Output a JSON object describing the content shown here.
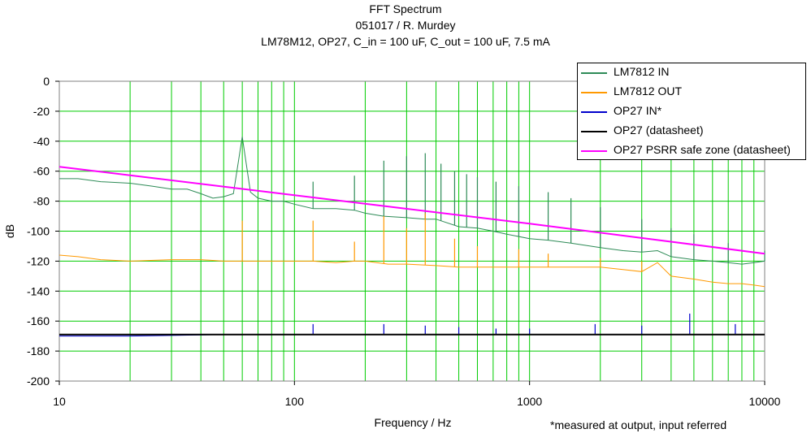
{
  "chart_data": {
    "type": "line",
    "title": "FFT Spectrum",
    "subtitle": "051017 / R. Murdey",
    "subtitle2": "LM78M12, OP27, C_in = 100 uF, C_out = 100 uF, 7.5 mA",
    "xlabel": "Frequency / Hz",
    "ylabel": "dB",
    "x_scale": "log",
    "xlim": [
      10,
      10000
    ],
    "ylim": [
      -200,
      0
    ],
    "x_ticks": [
      "10",
      "100",
      "1000",
      "10000"
    ],
    "y_ticks": [
      "0",
      "-20",
      "-40",
      "-60",
      "-80",
      "-100",
      "-120",
      "-140",
      "-160",
      "-180",
      "-200"
    ],
    "grid": true,
    "grid_color": "#00cc00",
    "legend_position": "top-right",
    "footnote": "*measured at output, input referred",
    "series": [
      {
        "name": "LM7812 IN",
        "color": "#2e8b57",
        "x": [
          10,
          12,
          15,
          20,
          25,
          30,
          35,
          40,
          45,
          50,
          55,
          60,
          65,
          70,
          80,
          90,
          100,
          120,
          150,
          180,
          200,
          240,
          300,
          360,
          400,
          500,
          600,
          700,
          800,
          1000,
          1200,
          1500,
          2000,
          2500,
          3000,
          3500,
          4000,
          5000,
          6000,
          7000,
          8000,
          9000,
          10000
        ],
        "y": [
          -65,
          -65,
          -67,
          -68,
          -70,
          -72,
          -72,
          -75,
          -78,
          -77,
          -75,
          -37,
          -74,
          -78,
          -80,
          -80,
          -82,
          -85,
          -85,
          -86,
          -88,
          -90,
          -91,
          -92,
          -92,
          -97,
          -98,
          -100,
          -102,
          -105,
          -106,
          -108,
          -111,
          -113,
          -114,
          -113,
          -117,
          -119,
          -120,
          -121,
          -122,
          -121,
          -120
        ],
        "peaks": [
          [
            60,
            -37
          ],
          [
            120,
            -67
          ],
          [
            180,
            -63
          ],
          [
            240,
            -53
          ],
          [
            300,
            -50
          ],
          [
            360,
            -48
          ],
          [
            420,
            -55
          ],
          [
            480,
            -60
          ],
          [
            540,
            -62
          ],
          [
            600,
            -64
          ],
          [
            720,
            -67
          ],
          [
            900,
            -70
          ],
          [
            1200,
            -74
          ],
          [
            1500,
            -78
          ],
          [
            2000,
            -84
          ],
          [
            3000,
            -92
          ],
          [
            4000,
            -98
          ],
          [
            5000,
            -102
          ],
          [
            7000,
            -108
          ],
          [
            10000,
            -113
          ]
        ]
      },
      {
        "name": "LM7812 OUT",
        "color": "#ff9900",
        "x": [
          10,
          12,
          15,
          20,
          30,
          40,
          50,
          60,
          70,
          80,
          100,
          120,
          150,
          180,
          200,
          250,
          300,
          400,
          500,
          600,
          800,
          1000,
          1500,
          2000,
          3000,
          3500,
          4000,
          5000,
          6000,
          7000,
          8000,
          9000,
          10000
        ],
        "y": [
          -116,
          -117,
          -119,
          -120,
          -119,
          -119,
          -120,
          -120,
          -120,
          -120,
          -120,
          -120,
          -121,
          -120,
          -120,
          -122,
          -122,
          -123,
          -124,
          -124,
          -124,
          -124,
          -124,
          -124,
          -127,
          -121,
          -130,
          -132,
          -134,
          -135,
          -135,
          -136,
          -137
        ],
        "peaks": [
          [
            60,
            -93
          ],
          [
            120,
            -93
          ],
          [
            180,
            -107
          ],
          [
            240,
            -90
          ],
          [
            300,
            -98
          ],
          [
            360,
            -88
          ],
          [
            480,
            -105
          ],
          [
            600,
            -110
          ],
          [
            900,
            -112
          ],
          [
            1200,
            -115
          ],
          [
            2000,
            -118
          ],
          [
            3000,
            -120
          ]
        ]
      },
      {
        "name": "OP27 IN*",
        "color": "#0000cc",
        "x": [
          10,
          20,
          50,
          100,
          200,
          500,
          1000,
          2000,
          5000,
          10000
        ],
        "y": [
          -170,
          -170,
          -169,
          -169,
          -169,
          -169,
          -169,
          -169,
          -169,
          -169
        ],
        "peaks": [
          [
            120,
            -162
          ],
          [
            240,
            -162
          ],
          [
            360,
            -163
          ],
          [
            500,
            -164
          ],
          [
            720,
            -165
          ],
          [
            1000,
            -165
          ],
          [
            1900,
            -162
          ],
          [
            3000,
            -163
          ],
          [
            4800,
            -155
          ],
          [
            7500,
            -162
          ]
        ]
      },
      {
        "name": "OP27 (datasheet)",
        "color": "#000000",
        "x": [
          10,
          100,
          1000,
          10000
        ],
        "y": [
          -169,
          -169,
          -169,
          -169
        ]
      },
      {
        "name": "OP27 PSRR safe zone (datasheet)",
        "color": "#ff00ff",
        "x": [
          10,
          100,
          1000,
          10000
        ],
        "y": [
          -57,
          -76,
          -95,
          -115
        ]
      }
    ]
  }
}
